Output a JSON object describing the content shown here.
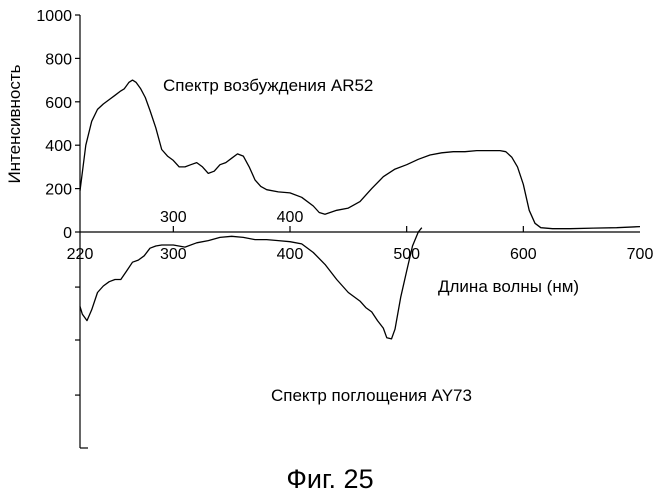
{
  "chart_data": [
    {
      "type": "line",
      "title": "Спектр возбуждения AR52",
      "xlabel": "",
      "ylabel": "Интенсивность",
      "xlim": [
        220,
        700
      ],
      "ylim": [
        0,
        1000
      ],
      "yticks": [
        0,
        200,
        400,
        600,
        800,
        1000
      ],
      "xticks_inner": [
        300,
        400
      ],
      "grid": false,
      "series": [
        {
          "name": "Спектр возбуждения AR52",
          "points": [
            [
              220,
              190
            ],
            [
              225,
              400
            ],
            [
              230,
              510
            ],
            [
              235,
              565
            ],
            [
              240,
              590
            ],
            [
              245,
              610
            ],
            [
              250,
              630
            ],
            [
              255,
              650
            ],
            [
              258,
              660
            ],
            [
              262,
              690
            ],
            [
              265,
              700
            ],
            [
              268,
              690
            ],
            [
              272,
              660
            ],
            [
              276,
              620
            ],
            [
              280,
              560
            ],
            [
              285,
              480
            ],
            [
              290,
              380
            ],
            [
              295,
              350
            ],
            [
              300,
              330
            ],
            [
              305,
              300
            ],
            [
              310,
              300
            ],
            [
              315,
              310
            ],
            [
              320,
              320
            ],
            [
              325,
              300
            ],
            [
              330,
              270
            ],
            [
              335,
              280
            ],
            [
              340,
              310
            ],
            [
              345,
              320
            ],
            [
              350,
              340
            ],
            [
              355,
              360
            ],
            [
              360,
              350
            ],
            [
              365,
              300
            ],
            [
              370,
              240
            ],
            [
              375,
              210
            ],
            [
              380,
              195
            ],
            [
              390,
              185
            ],
            [
              400,
              180
            ],
            [
              410,
              160
            ],
            [
              420,
              120
            ],
            [
              425,
              90
            ],
            [
              430,
              82
            ],
            [
              440,
              100
            ],
            [
              450,
              110
            ],
            [
              460,
              140
            ],
            [
              470,
              200
            ],
            [
              480,
              255
            ],
            [
              490,
              290
            ],
            [
              500,
              310
            ],
            [
              510,
              335
            ],
            [
              520,
              355
            ],
            [
              530,
              365
            ],
            [
              540,
              370
            ],
            [
              550,
              370
            ],
            [
              560,
              375
            ],
            [
              570,
              375
            ],
            [
              580,
              375
            ],
            [
              585,
              370
            ],
            [
              590,
              345
            ],
            [
              595,
              300
            ],
            [
              600,
              220
            ],
            [
              605,
              100
            ],
            [
              610,
              40
            ],
            [
              615,
              20
            ],
            [
              625,
              15
            ],
            [
              640,
              15
            ],
            [
              660,
              18
            ],
            [
              680,
              20
            ],
            [
              700,
              25
            ]
          ]
        }
      ]
    },
    {
      "type": "line",
      "title": "Спектр поглощения AY73",
      "xlabel": "Длина волны (нм)",
      "ylabel": "",
      "xlim": [
        220,
        700
      ],
      "xticks": [
        220,
        300,
        400,
        500,
        600,
        700
      ],
      "grid": false,
      "series": [
        {
          "name": "Спектр поглощения AY73",
          "points": [
            [
              220,
              0.655
            ],
            [
              222,
              0.62
            ],
            [
              226,
              0.59
            ],
            [
              230,
              0.64
            ],
            [
              235,
              0.72
            ],
            [
              240,
              0.75
            ],
            [
              245,
              0.77
            ],
            [
              250,
              0.78
            ],
            [
              255,
              0.78
            ],
            [
              260,
              0.82
            ],
            [
              265,
              0.86
            ],
            [
              270,
              0.87
            ],
            [
              275,
              0.89
            ],
            [
              280,
              0.925
            ],
            [
              285,
              0.935
            ],
            [
              290,
              0.94
            ],
            [
              300,
              0.94
            ],
            [
              310,
              0.93
            ],
            [
              320,
              0.95
            ],
            [
              330,
              0.96
            ],
            [
              340,
              0.975
            ],
            [
              350,
              0.98
            ],
            [
              360,
              0.975
            ],
            [
              370,
              0.965
            ],
            [
              380,
              0.965
            ],
            [
              390,
              0.96
            ],
            [
              400,
              0.955
            ],
            [
              410,
              0.945
            ],
            [
              420,
              0.905
            ],
            [
              430,
              0.85
            ],
            [
              440,
              0.78
            ],
            [
              450,
              0.72
            ],
            [
              460,
              0.68
            ],
            [
              465,
              0.65
            ],
            [
              470,
              0.63
            ],
            [
              475,
              0.59
            ],
            [
              480,
              0.555
            ],
            [
              483,
              0.51
            ],
            [
              487,
              0.505
            ],
            [
              490,
              0.55
            ],
            [
              495,
              0.7
            ],
            [
              500,
              0.82
            ],
            [
              505,
              0.935
            ],
            [
              510,
              1.0
            ],
            [
              513,
              1.02
            ]
          ]
        }
      ]
    }
  ],
  "texts": {
    "excitation_label": "Спектр возбуждения AR52",
    "absorption_label": "Спектр поглощения AY73",
    "xlabel": "Длина волны (нм)",
    "ylabel": "Интенсивность",
    "caption": "Фиг. 25"
  },
  "colors": {
    "line": "#000000",
    "background": "#ffffff"
  }
}
